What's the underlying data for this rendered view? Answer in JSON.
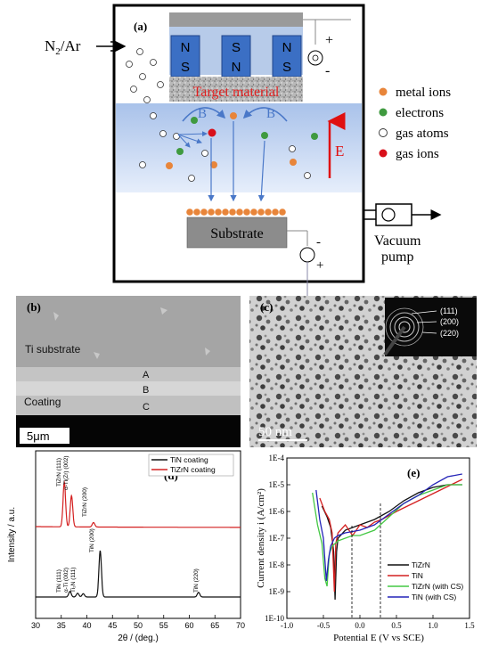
{
  "panel_a": {
    "label": "(a)",
    "gas_inlet": "N",
    "gas_inlet_sub": "2",
    "gas_inlet_rest": "/Ar",
    "magnet_labels": [
      {
        "top": "N",
        "bottom": "S"
      },
      {
        "top": "S",
        "bottom": "N"
      },
      {
        "top": "N",
        "bottom": "S"
      }
    ],
    "target_label": "Target material",
    "field_label_left": "B",
    "field_label_right": "B",
    "e_field_label": "E",
    "plus_top": "+",
    "minus_top": "-",
    "substrate_label": "Substrate",
    "minus_bottom": "-",
    "plus_bottom": "+",
    "pump_label_line1": "Vacuum",
    "pump_label_line2": "pump",
    "legend": [
      {
        "label": "metal ions",
        "color": "#e8853a"
      },
      {
        "label": "electrons",
        "color": "#3f9a3f"
      },
      {
        "label": "gas atoms",
        "color": "#ffffff"
      },
      {
        "label": "gas ions",
        "color": "#d8101a"
      }
    ]
  },
  "panel_b": {
    "label": "(b)",
    "region_substrate": "Ti substrate",
    "region_coating": "Coating",
    "layer_a": "A",
    "layer_b": "B",
    "layer_c": "C",
    "scale_bar": "5μm"
  },
  "panel_c": {
    "label": "(c)",
    "scale_bar": "50 nm",
    "diffraction_rings": [
      "(111)",
      "(200)",
      "(220)"
    ]
  },
  "panel_d": {
    "label": "(d)",
    "ylabel": "Intensity / a.u.",
    "xlabel": "2θ / (deg.)",
    "legend": [
      {
        "label": "TiN coating",
        "color": "#111111"
      },
      {
        "label": "TiZrN coating",
        "color": "#d42020"
      }
    ],
    "peaks_red": [
      "TiZrN (111)",
      "α-Ti(Zr) (002)",
      "TiZrN (200)"
    ],
    "peaks_black": [
      "TiN (111)",
      "α-Ti (002)",
      "Ti₂N (111)",
      "TiN (200)",
      "TiN (220)"
    ]
  },
  "panel_e": {
    "label": "(e)",
    "ylabel": "Current density i (A/cm²)",
    "xlabel": "Potential E (V vs SCE)",
    "legend": [
      {
        "label": "TiZrN",
        "color": "#111111"
      },
      {
        "label": "TiN",
        "color": "#d42020"
      },
      {
        "label": "TiZrN (with CS)",
        "color": "#44c844"
      },
      {
        "label": "TiN (with CS)",
        "color": "#2424b8"
      }
    ]
  },
  "chart_data": [
    {
      "type": "line",
      "panel": "d",
      "xlabel": "2θ / (deg.)",
      "ylabel": "Intensity / a.u.",
      "xlim": [
        30,
        70
      ],
      "x_ticks": [
        30,
        35,
        40,
        45,
        50,
        55,
        60,
        65,
        70
      ],
      "series": [
        {
          "name": "TiN coating",
          "color": "#111111",
          "peaks": [
            {
              "x": 36.7,
              "rel": 0.12
            },
            {
              "x": 38.2,
              "rel": 0.08
            },
            {
              "x": 39.3,
              "rel": 0.07
            },
            {
              "x": 42.6,
              "rel": 1.0
            },
            {
              "x": 61.8,
              "rel": 0.1
            }
          ]
        },
        {
          "name": "TiZrN coating",
          "color": "#d42020",
          "peaks": [
            {
              "x": 35.6,
              "rel": 1.0
            },
            {
              "x": 37.0,
              "rel": 0.7
            },
            {
              "x": 41.3,
              "rel": 0.1
            }
          ]
        }
      ]
    },
    {
      "type": "line",
      "panel": "e",
      "xlabel": "Potential E (V vs SCE)",
      "ylabel": "Current density i (A/cm²)",
      "xlim": [
        -1.0,
        1.5
      ],
      "x_ticks": [
        "-1.0",
        "-0.5",
        "0.0",
        "0.5",
        "1.0",
        "1.5"
      ],
      "y_ticks": [
        "1E-4",
        "1E-5",
        "1E-6",
        "1E-7",
        "1E-8",
        "1E-9",
        "1E-10"
      ],
      "y_log_range": [
        -10,
        -4
      ],
      "series": [
        {
          "name": "TiZrN",
          "color": "#111111",
          "x": [
            -0.52,
            -0.45,
            -0.4,
            -0.36,
            -0.34,
            -0.32,
            -0.3,
            -0.2,
            0.0,
            0.2,
            0.4,
            0.6,
            0.8,
            1.0,
            1.2,
            1.4
          ],
          "logy": [
            -5.8,
            -6.2,
            -6.6,
            -7.5,
            -9.3,
            -7.5,
            -7.0,
            -6.7,
            -6.5,
            -6.3,
            -6.0,
            -5.6,
            -5.3,
            -5.1,
            -5.0,
            -5.0
          ]
        },
        {
          "name": "TiN",
          "color": "#d42020",
          "x": [
            -0.55,
            -0.48,
            -0.42,
            -0.38,
            -0.35,
            -0.33,
            -0.3,
            -0.2,
            -0.1,
            0.0,
            0.1,
            0.2,
            0.3,
            0.5,
            0.8,
            1.1,
            1.4
          ],
          "logy": [
            -5.5,
            -6.0,
            -6.3,
            -6.8,
            -9.0,
            -7.2,
            -6.8,
            -6.5,
            -6.9,
            -6.5,
            -6.6,
            -6.4,
            -6.3,
            -6.0,
            -5.6,
            -5.2,
            -4.8
          ]
        },
        {
          "name": "TiZrN (with CS)",
          "color": "#44c844",
          "x": [
            -0.65,
            -0.58,
            -0.52,
            -0.48,
            -0.45,
            -0.42,
            -0.38,
            -0.3,
            -0.2,
            -0.1,
            0.0,
            0.2,
            0.4,
            0.6,
            0.8,
            1.0,
            1.2,
            1.4
          ],
          "logy": [
            -5.3,
            -6.5,
            -7.2,
            -8.5,
            -8.8,
            -7.6,
            -7.3,
            -7.1,
            -7.0,
            -6.9,
            -6.9,
            -6.7,
            -6.2,
            -5.7,
            -5.4,
            -5.2,
            -5.0,
            -5.0
          ]
        },
        {
          "name": "TiN (with CS)",
          "color": "#2424b8",
          "x": [
            -0.6,
            -0.55,
            -0.5,
            -0.46,
            -0.43,
            -0.4,
            -0.35,
            -0.3,
            -0.2,
            0.0,
            0.2,
            0.4,
            0.6,
            0.8,
            1.0,
            1.2,
            1.4
          ],
          "logy": [
            -5.2,
            -6.3,
            -7.0,
            -8.6,
            -7.8,
            -7.3,
            -7.0,
            -6.9,
            -6.8,
            -6.7,
            -6.5,
            -6.1,
            -5.7,
            -5.4,
            -5.0,
            -4.7,
            -4.6
          ]
        }
      ]
    }
  ]
}
